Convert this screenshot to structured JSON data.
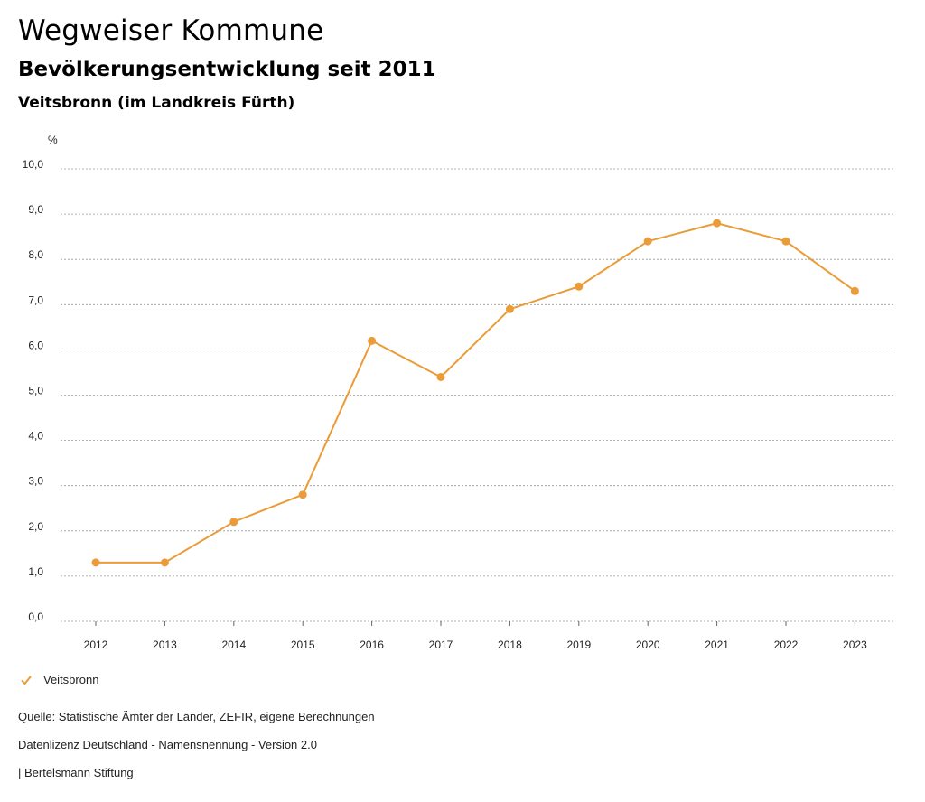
{
  "header": {
    "title": "Wegweiser Kommune",
    "subtitle": "Bevölkerungsentwicklung seit 2011",
    "region": "Veitsbronn (im Landkreis Fürth)"
  },
  "colors": {
    "series": "#eb9b37",
    "grid": "#999999"
  },
  "chart_data": {
    "type": "line",
    "title": "Bevölkerungsentwicklung seit 2011",
    "ylabel": "%",
    "xlabel": "",
    "ylim": [
      0,
      10
    ],
    "yticks": [
      "0,0",
      "1,0",
      "2,0",
      "3,0",
      "4,0",
      "5,0",
      "6,0",
      "7,0",
      "8,0",
      "9,0",
      "10,0"
    ],
    "x": [
      "2012",
      "2013",
      "2014",
      "2015",
      "2016",
      "2017",
      "2018",
      "2019",
      "2020",
      "2021",
      "2022",
      "2023"
    ],
    "series": [
      {
        "name": "Veitsbronn",
        "values": [
          1.3,
          1.3,
          2.2,
          2.8,
          6.2,
          5.4,
          6.9,
          7.4,
          8.4,
          8.8,
          8.4,
          7.3
        ]
      }
    ],
    "grid": true,
    "legend": "bottom-left"
  },
  "footer": {
    "source": "Quelle: Statistische Ämter der Länder, ZEFIR, eigene Berechnungen",
    "license": "Datenlizenz Deutschland - Namensnennung - Version 2.0",
    "publisher": "| Bertelsmann Stiftung"
  }
}
